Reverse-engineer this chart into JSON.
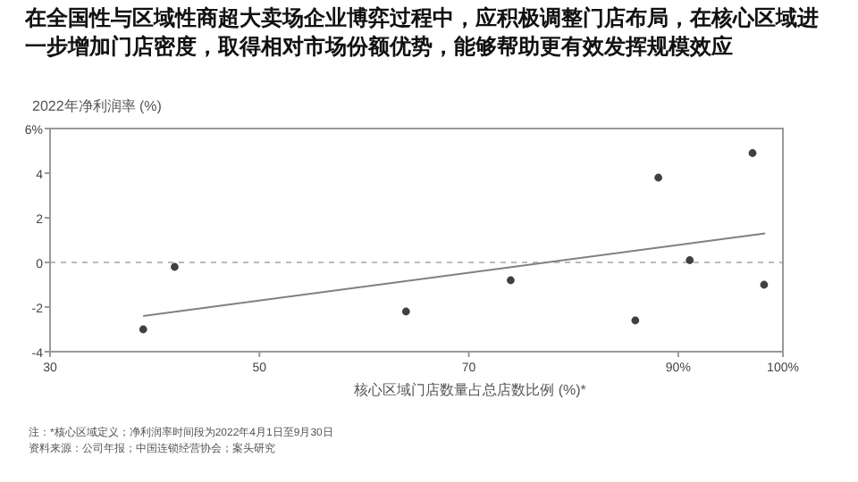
{
  "chart_data": {
    "type": "scatter",
    "title": "在全国性与区域性商超大卖场企业博弈过程中，应积极调整门店布局，在核心区域进一步增加门店密度，取得相对市场份额优势，能够帮助更有效发挥规模效应",
    "ylabel": "2022年净利润率 (%)",
    "xlabel": "核心区域门店数量占总店数比例 (%)*",
    "series": [
      {
        "marker": "circle",
        "color": "#404040",
        "x": [
          38.9,
          41.9,
          64.0,
          74.0,
          85.9,
          88.1,
          91.1,
          97.1,
          98.2
        ],
        "values": [
          -3.0,
          -0.2,
          -2.2,
          -0.8,
          -2.6,
          3.8,
          0.1,
          4.9,
          -1.0
        ]
      },
      {
        "type": "line",
        "marker": "none",
        "color": "#808080",
        "x": [
          38.9,
          98.3
        ],
        "values": [
          -2.4,
          1.3
        ]
      }
    ],
    "xlim": [
      30,
      100
    ],
    "xticks": [
      30,
      50,
      70,
      {
        "value": 90,
        "label": "90%"
      },
      {
        "value": 100,
        "label": "100%"
      }
    ],
    "ylim": [
      -4,
      6
    ],
    "yticks": [
      -4,
      -2,
      0,
      2,
      4,
      {
        "value": 6,
        "label": "6%"
      }
    ],
    "ref_lines": [
      {
        "axis": "y",
        "value": 0,
        "color": "#bbbbbb",
        "line_style": "dashed"
      }
    ],
    "grid": false,
    "annotations": [
      "注：*核心区域定义；净利润率时间段为2022年4月1日至9月30日",
      "资料来源：公司年报；中国连锁经营协会；案头研究"
    ]
  }
}
